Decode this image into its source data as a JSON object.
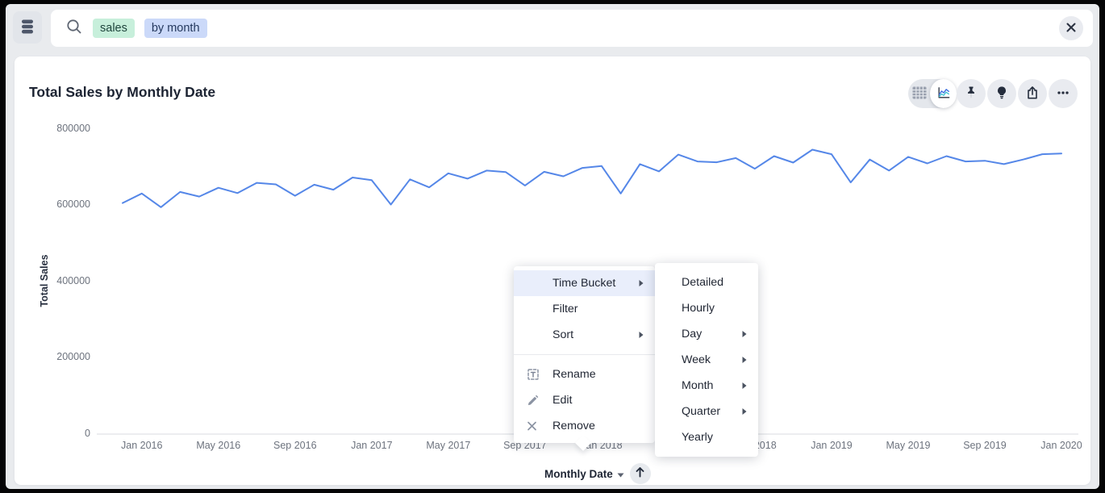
{
  "search": {
    "tokens": [
      {
        "text": "sales",
        "type": "measure"
      },
      {
        "text": "by month",
        "type": "attribute"
      }
    ]
  },
  "chart": {
    "title": "Total Sales by Monthly Date",
    "line_color": "#5587e8",
    "axis_line_color": "#d8dbe0"
  },
  "chart_data": {
    "type": "line",
    "title": "Total Sales by Monthly Date",
    "xlabel": "Monthly Date",
    "ylabel": "Total Sales",
    "ylim": [
      0,
      800000
    ],
    "grid": false,
    "legend": false,
    "y_ticks": [
      0,
      200000,
      400000,
      600000,
      800000
    ],
    "y_tick_labels": [
      "0",
      "200000",
      "400000",
      "600000",
      "800000"
    ],
    "x": [
      "Dec 2015",
      "Jan 2016",
      "Feb 2016",
      "Mar 2016",
      "Apr 2016",
      "May 2016",
      "Jun 2016",
      "Jul 2016",
      "Aug 2016",
      "Sep 2016",
      "Oct 2016",
      "Nov 2016",
      "Dec 2016",
      "Jan 2017",
      "Feb 2017",
      "Mar 2017",
      "Apr 2017",
      "May 2017",
      "Jun 2017",
      "Jul 2017",
      "Aug 2017",
      "Sep 2017",
      "Oct 2017",
      "Nov 2017",
      "Dec 2017",
      "Jan 2018",
      "Feb 2018",
      "Mar 2018",
      "Apr 2018",
      "May 2018",
      "Jun 2018",
      "Jul 2018",
      "Aug 2018",
      "Sep 2018",
      "Oct 2018",
      "Nov 2018",
      "Dec 2018",
      "Jan 2019",
      "Feb 2019",
      "Mar 2019",
      "Apr 2019",
      "May 2019",
      "Jun 2019",
      "Jul 2019",
      "Aug 2019",
      "Sep 2019",
      "Oct 2019",
      "Nov 2019",
      "Dec 2019",
      "Jan 2020"
    ],
    "values": [
      604000,
      629000,
      593000,
      633000,
      621000,
      644000,
      630000,
      657000,
      653000,
      623000,
      652000,
      639000,
      671000,
      664000,
      600000,
      666000,
      645000,
      682000,
      668000,
      689000,
      685000,
      650000,
      686000,
      674000,
      696000,
      701000,
      629000,
      706000,
      687000,
      731000,
      713000,
      711000,
      722000,
      694000,
      727000,
      710000,
      744000,
      732000,
      658000,
      718000,
      689000,
      725000,
      708000,
      727000,
      713000,
      715000,
      706000,
      718000,
      732000,
      734000
    ],
    "x_tick_labels": [
      "Jan 2016",
      "May 2016",
      "Sep 2016",
      "Jan 2017",
      "May 2017",
      "Sep 2017",
      "Jan 2018",
      "May 2018",
      "Sep 2018",
      "Jan 2019",
      "May 2019",
      "Sep 2019",
      "Jan 2020"
    ],
    "x_tick_indices": [
      1,
      5,
      9,
      13,
      17,
      21,
      25,
      29,
      33,
      37,
      41,
      45,
      49
    ]
  },
  "axis_control": {
    "label": "Monthly Date"
  },
  "context_menu": {
    "items": [
      {
        "label": "Time Bucket"
      },
      {
        "label": "Filter"
      },
      {
        "label": "Sort"
      },
      {
        "label": ""
      },
      {
        "label": "Rename"
      },
      {
        "label": "Edit"
      },
      {
        "label": "Remove"
      }
    ]
  },
  "submenu": {
    "items": [
      {
        "label": "Detailed"
      },
      {
        "label": "Hourly"
      },
      {
        "label": "Day"
      },
      {
        "label": "Week"
      },
      {
        "label": "Month"
      },
      {
        "label": "Quarter"
      },
      {
        "label": "Yearly"
      }
    ]
  }
}
